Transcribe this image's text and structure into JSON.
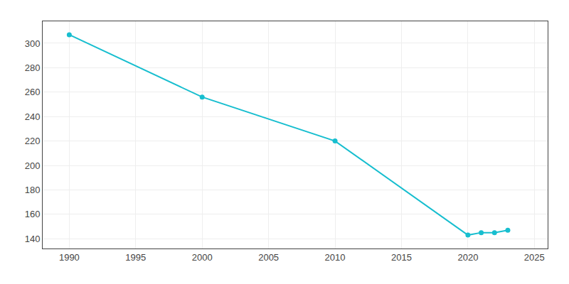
{
  "chart_data": {
    "type": "line",
    "x": [
      1990,
      2000,
      2010,
      2020,
      2021,
      2022,
      2023
    ],
    "values": [
      307,
      256,
      220,
      143,
      145,
      145,
      147
    ],
    "color": "#17becf",
    "marker": "circle",
    "line_style": "solid",
    "xlim": [
      1988,
      2026
    ],
    "ylim": [
      132,
      318
    ],
    "xticks": [
      1990,
      1995,
      2000,
      2005,
      2010,
      2015,
      2020,
      2025
    ],
    "yticks": [
      140,
      160,
      180,
      200,
      220,
      240,
      260,
      280,
      300
    ],
    "grid": true
  }
}
